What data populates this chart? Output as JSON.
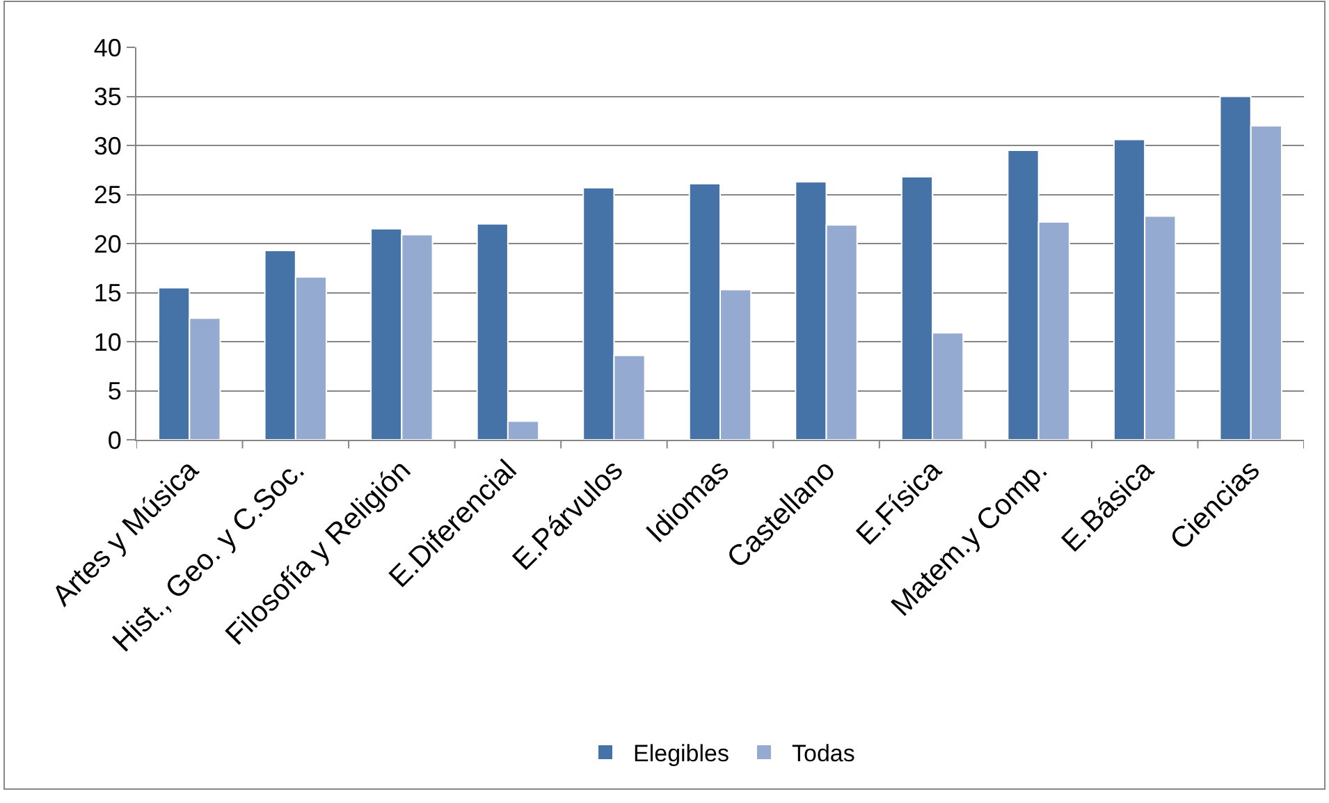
{
  "chart_data": {
    "type": "bar",
    "categories": [
      "Artes y Música",
      "Hist., Geo. y C.Soc.",
      "Filosofía y Religión",
      "E.Diferencial",
      "E.Párvulos",
      "Idiomas",
      "Castellano",
      "E.Física",
      "Matem.y Comp.",
      "E.Básica",
      "Ciencias"
    ],
    "series": [
      {
        "name": "Elegibles",
        "color": "#4572a7",
        "values": [
          15.5,
          19.3,
          21.5,
          22.0,
          25.7,
          26.1,
          26.3,
          26.8,
          29.5,
          30.6,
          35.0
        ]
      },
      {
        "name": "Todas",
        "color": "#95aad1",
        "values": [
          12.4,
          16.6,
          20.9,
          1.9,
          8.6,
          15.3,
          21.9,
          10.9,
          22.2,
          22.8,
          32.0
        ]
      }
    ],
    "ylim": [
      0,
      40
    ],
    "yticks": [
      0,
      5,
      10,
      15,
      20,
      25,
      30,
      35,
      40
    ],
    "grid": "y",
    "legend": "bottom"
  }
}
